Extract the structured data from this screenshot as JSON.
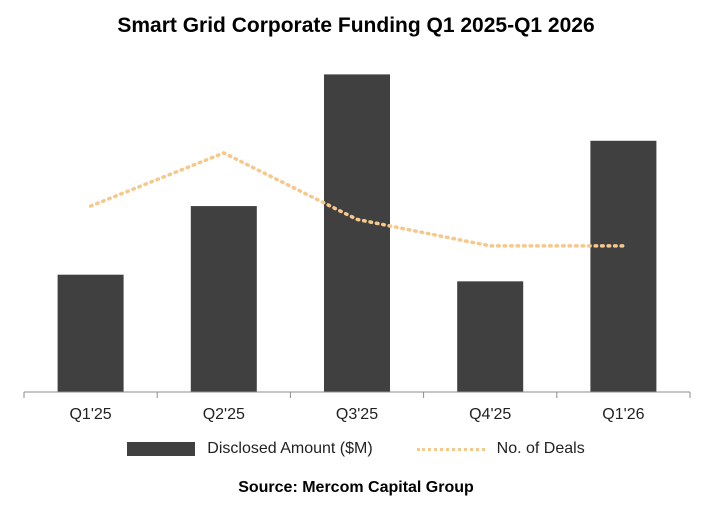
{
  "chart_data": {
    "type": "bar",
    "title": "Smart Grid Corporate Funding Q1 2025-Q1 2026",
    "categories": [
      "Q1'25",
      "Q2'25",
      "Q3'25",
      "Q4'25",
      "Q1'26"
    ],
    "series": [
      {
        "name": "Disclosed Amount ($M)",
        "type": "bar",
        "values": [
          106,
          168,
          287,
          100,
          227
        ]
      },
      {
        "name": "No. of Deals",
        "type": "line",
        "style": "dotted",
        "values": [
          14,
          18,
          13,
          11,
          11
        ]
      }
    ],
    "xlabel": "",
    "ylabel": "",
    "ylim": [
      0,
      300
    ],
    "secondary_ylim": [
      0,
      25
    ],
    "grid": false,
    "legend_position": "bottom",
    "colors": {
      "bar": "#404040",
      "line": "#f5c88c"
    },
    "source": "Source: Mercom Capital Group"
  }
}
